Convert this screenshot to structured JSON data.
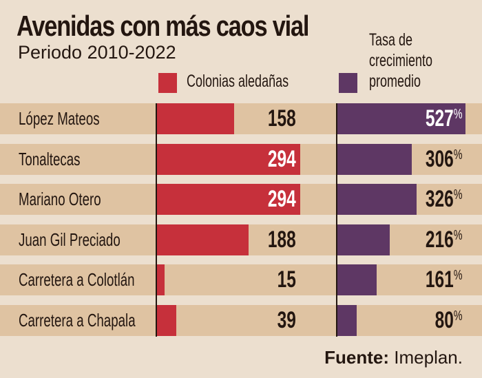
{
  "header": {
    "title": "Avenidas con más caos vial",
    "subtitle": "Periodo 2010-2022"
  },
  "legend": {
    "series_a": "Colonias aledañas",
    "series_b_line1": "Tasa de",
    "series_b_line2": "crecimiento",
    "series_b_line3": "promedio"
  },
  "footer": {
    "source_label": "Fuente:",
    "source_value": "Imeplan."
  },
  "colors": {
    "background": "#ecdfcf",
    "row": "#dfc3a2",
    "series_a": "#c6303b",
    "series_b": "#5e3764"
  },
  "chart_data": {
    "type": "bar",
    "orientation": "horizontal",
    "title": "Avenidas con más caos vial",
    "subtitle": "Periodo 2010-2022",
    "categories": [
      "López Mateos",
      "Tonaltecas",
      "Mariano Otero",
      "Juan Gil Preciado",
      "Carretera a Colotlán",
      "Carretera a Chapala"
    ],
    "series": [
      {
        "name": "Colonias aledañas",
        "values": [
          158,
          294,
          294,
          188,
          15,
          39
        ],
        "labels": [
          "158",
          "294",
          "294",
          "188",
          "15",
          "39"
        ]
      },
      {
        "name": "Tasa de crecimiento promedio",
        "unit": "%",
        "values": [
          527,
          306,
          326,
          216,
          161,
          80
        ],
        "labels": [
          "527",
          "306",
          "326",
          "216",
          "161",
          "80"
        ]
      }
    ],
    "source": "Fuente: Imeplan."
  }
}
